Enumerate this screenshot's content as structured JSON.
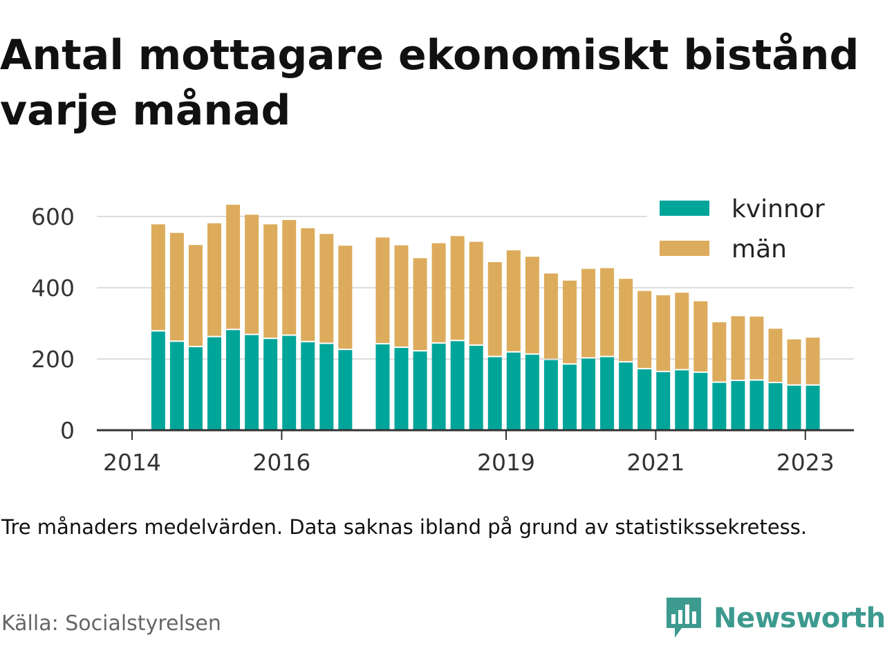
{
  "colors": {
    "kvinnor": "#00a59a",
    "man": "#dcac5c",
    "grid": "#dddddd",
    "axis": "#333333",
    "brand": "#3d9a8f"
  },
  "chart_data": {
    "type": "bar",
    "stacked": true,
    "title": "Antal mottagare ekonomiskt bistånd varje månad",
    "ylim": [
      0,
      650
    ],
    "yticks": [
      0,
      200,
      400,
      600
    ],
    "xticks": [
      {
        "label": "2014",
        "x": 2014
      },
      {
        "label": "2016",
        "x": 2016
      },
      {
        "label": "2019",
        "x": 2019
      },
      {
        "label": "2021",
        "x": 2021
      },
      {
        "label": "2023",
        "x": 2023
      }
    ],
    "legend_position": "top-right",
    "grid": true,
    "x": [
      "2014.35",
      "2014.6",
      "2014.85",
      "2015.1",
      "2015.35",
      "2015.6",
      "2015.85",
      "2016.1",
      "2016.35",
      "2016.6",
      "2016.85",
      "2017.35",
      "2017.6",
      "2017.85",
      "2018.1",
      "2018.35",
      "2018.6",
      "2018.85",
      "2019.1",
      "2019.35",
      "2019.6",
      "2019.85",
      "2020.1",
      "2020.35",
      "2020.6",
      "2020.85",
      "2021.1",
      "2021.35",
      "2021.6",
      "2021.85",
      "2022.1",
      "2022.35",
      "2022.6",
      "2022.85",
      "2023.1"
    ],
    "series": [
      {
        "name": "kvinnor",
        "values": [
          277,
          248,
          233,
          261,
          281,
          267,
          256,
          265,
          247,
          242,
          225,
          241,
          231,
          221,
          243,
          250,
          237,
          205,
          218,
          212,
          197,
          184,
          201,
          205,
          190,
          171,
          163,
          168,
          161,
          133,
          138,
          139,
          132,
          125,
          125
        ]
      },
      {
        "name": "män",
        "values": [
          301,
          306,
          287,
          320,
          352,
          338,
          322,
          325,
          320,
          309,
          293,
          300,
          288,
          262,
          282,
          295,
          292,
          267,
          287,
          275,
          243,
          236,
          252,
          250,
          235,
          220,
          216,
          218,
          201,
          170,
          182,
          180,
          153,
          130,
          135
        ]
      }
    ]
  },
  "note": "Tre månaders medelvärden. Data saknas ibland på grund av statistikssekretess.",
  "source": "Källa: Socialstyrelsen",
  "brand": {
    "name": "Newsworthy",
    "logo_icon": "newsworthy-chart-bubble-icon"
  }
}
